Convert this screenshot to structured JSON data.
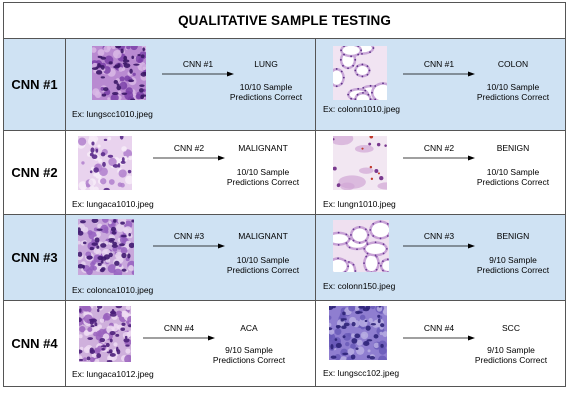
{
  "title": "QUALITATIVE SAMPLE TESTING",
  "rows": [
    {
      "label": "CNN #1",
      "left": {
        "example": "Ex: lungscc1010.jpeg",
        "model": "CNN #1",
        "result": "LUNG",
        "score_line1": "10/10 Sample",
        "score_line2": "Predictions Correct",
        "thumb": "lungscc"
      },
      "right": {
        "example": "Ex: colonn1010.jpeg",
        "model": "CNN #1",
        "result": "COLON",
        "score_line1": "10/10 Sample",
        "score_line2": "Predictions Correct",
        "thumb": "colonn"
      }
    },
    {
      "label": "CNN #2",
      "left": {
        "example": "Ex: lungaca1010.jpeg",
        "model": "CNN #2",
        "result": "MALIGNANT",
        "score_line1": "10/10 Sample",
        "score_line2": "Predictions Correct",
        "thumb": "lungaca"
      },
      "right": {
        "example": "Ex: lungn1010.jpeg",
        "model": "CNN #2",
        "result": "BENIGN",
        "score_line1": "10/10 Sample",
        "score_line2": "Predictions Correct",
        "thumb": "lungn"
      }
    },
    {
      "label": "CNN #3",
      "left": {
        "example": "Ex: colonca1010.jpeg",
        "model": "CNN #3",
        "result": "MALIGNANT",
        "score_line1": "10/10 Sample",
        "score_line2": "Predictions Correct",
        "thumb": "colonca"
      },
      "right": {
        "example": "Ex: colonn150.jpeg",
        "model": "CNN #3",
        "result": "BENIGN",
        "score_line1": "9/10 Sample",
        "score_line2": "Predictions Correct",
        "thumb": "colonn2"
      }
    },
    {
      "label": "CNN #4",
      "left": {
        "example": "Ex: lungaca1012.jpeg",
        "model": "CNN #4",
        "result": "ACA",
        "score_line1": "9/10 Sample",
        "score_line2": "Predictions Correct",
        "thumb": "lungaca2"
      },
      "right": {
        "example": "Ex: lungscc102.jpeg",
        "model": "CNN #4",
        "result": "SCC",
        "score_line1": "9/10 Sample",
        "score_line2": "Predictions Correct",
        "thumb": "lungscc2"
      }
    }
  ],
  "colors": {
    "highlight_row": "#cfe2f3",
    "border": "#555555"
  }
}
